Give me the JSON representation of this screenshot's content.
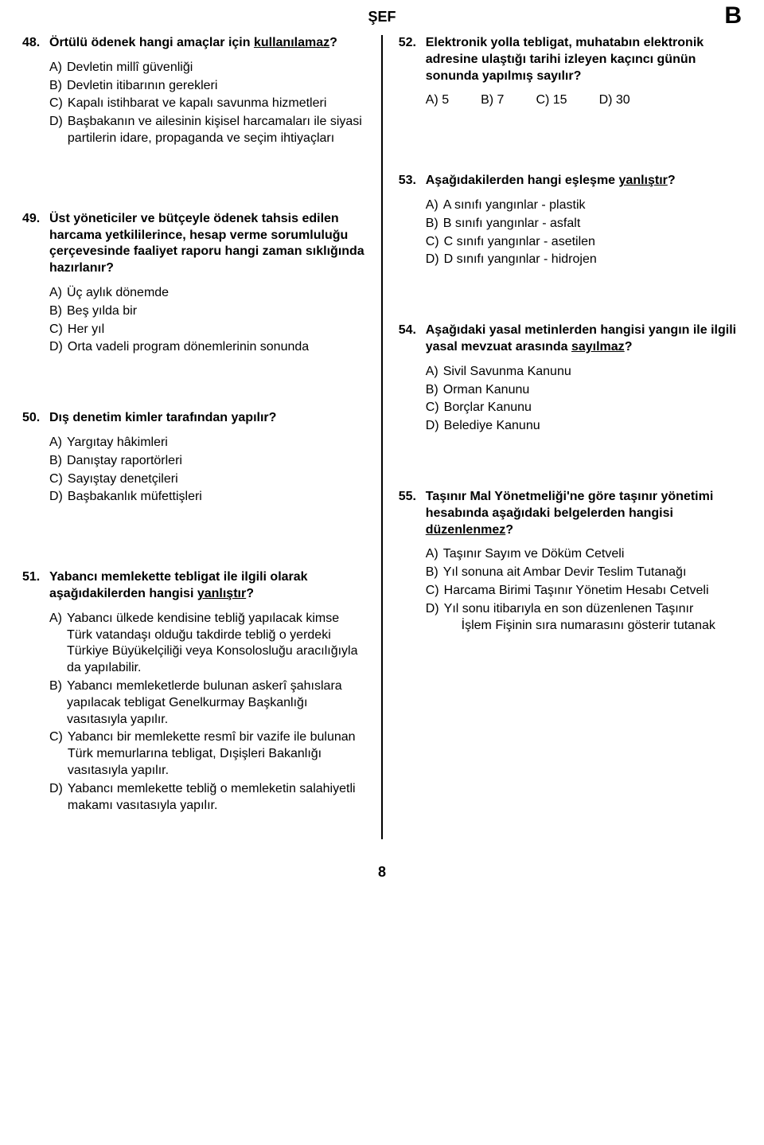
{
  "header": {
    "title": "ŞEF",
    "letter": "B"
  },
  "page_number": "8",
  "left": {
    "q48": {
      "num": "48.",
      "text_pre": "Örtülü ödenek hangi amaçlar için ",
      "text_u": "kullanılamaz",
      "text_post": "?",
      "opts": {
        "a_p": "A)",
        "a": "Devletin millî güvenliği",
        "b_p": "B)",
        "b": "Devletin itibarının gerekleri",
        "c_p": "C)",
        "c": "Kapalı istihbarat ve kapalı savunma hizmetleri",
        "d_p": "D)",
        "d": "Başbakanın ve ailesinin kişisel harcamaları ile siyasi partilerin idare, propaganda ve seçim ihtiyaçları"
      }
    },
    "q49": {
      "num": "49.",
      "text": "Üst yöneticiler ve bütçeyle ödenek tahsis edilen harcama yetkililerince, hesap verme sorumluluğu çerçevesinde faaliyet raporu hangi zaman sıklığında hazırlanır?",
      "opts": {
        "a_p": "A)",
        "a": "Üç aylık dönemde",
        "b_p": "B)",
        "b": "Beş yılda bir",
        "c_p": "C)",
        "c": "Her yıl",
        "d_p": "D)",
        "d": "Orta vadeli program dönemlerinin sonunda"
      }
    },
    "q50": {
      "num": "50.",
      "text": "Dış denetim kimler tarafından yapılır?",
      "opts": {
        "a_p": "A)",
        "a": "Yargıtay hâkimleri",
        "b_p": "B)",
        "b": "Danıştay raportörleri",
        "c_p": "C)",
        "c": "Sayıştay denetçileri",
        "d_p": "D)",
        "d": "Başbakanlık müfettişleri"
      }
    },
    "q51": {
      "num": "51.",
      "text_pre": "Yabancı memlekette tebligat ile ilgili olarak aşağıdakilerden hangisi ",
      "text_u": "yanlıştır",
      "text_post": "?",
      "opts": {
        "a_p": "A)",
        "a": "Yabancı ülkede kendisine tebliğ yapılacak kimse Türk vatandaşı olduğu takdirde tebliğ o yerdeki Türkiye Büyükelçiliği veya Konsolosluğu aracılığıyla da yapılabilir.",
        "b_p": "B)",
        "b": "Yabancı memleketlerde bulunan askerî şahıslara yapılacak tebligat Genelkurmay Başkanlığı vasıtasıyla yapılır.",
        "c_p": "C)",
        "c": "Yabancı bir memlekette resmî bir vazife ile bulunan Türk memurlarına tebligat, Dışişleri Bakanlığı vasıtasıyla yapılır.",
        "d_p": "D)",
        "d": "Yabancı memlekette tebliğ o memleketin salahiyetli makamı vasıtasıyla yapılır."
      }
    }
  },
  "right": {
    "q52": {
      "num": "52.",
      "text": "Elektronik yolla tebligat, muhatabın elektronik adresine ulaştığı tarihi izleyen kaçıncı günün sonunda yapılmış sayılır?",
      "inline": {
        "a": "A) 5",
        "b": "B) 7",
        "c": "C) 15",
        "d": "D) 30"
      }
    },
    "q53": {
      "num": "53.",
      "text_pre": "Aşağıdakilerden hangi eşleşme ",
      "text_u": "yanlıştır",
      "text_post": "?",
      "opts": {
        "a_p": "A)",
        "a": "A sınıfı yangınlar - plastik",
        "b_p": "B)",
        "b": "B sınıfı yangınlar - asfalt",
        "c_p": "C)",
        "c": "C sınıfı yangınlar - asetilen",
        "d_p": "D)",
        "d": "D sınıfı yangınlar - hidrojen"
      }
    },
    "q54": {
      "num": "54.",
      "text_pre": "Aşağıdaki yasal metinlerden hangisi yangın ile ilgili yasal mevzuat arasında ",
      "text_u": "sayılmaz",
      "text_post": "?",
      "opts": {
        "a_p": "A)",
        "a": "Sivil Savunma Kanunu",
        "b_p": "B)",
        "b": "Orman Kanunu",
        "c_p": "C)",
        "c": "Borçlar Kanunu",
        "d_p": "D)",
        "d": "Belediye Kanunu"
      }
    },
    "q55": {
      "num": "55.",
      "text_pre": "Taşınır Mal Yönetmeliği'ne göre taşınır yönetimi hesabında aşağıdaki belgelerden hangisi ",
      "text_u": "düzenlenmez",
      "text_post": "?",
      "opts": {
        "a_p": "A)",
        "a": "Taşınır Sayım ve Döküm Cetveli",
        "b_p": "B)",
        "b": "Yıl sonuna ait Ambar Devir Teslim Tutanağı",
        "c_p": "C)",
        "c": "Harcama Birimi Taşınır Yönetim Hesabı Cetveli",
        "d_p": "D)",
        "d1": "Yıl sonu itibarıyla en son düzenlenen Taşınır",
        "d2": "İşlem Fişinin sıra numarasını gösterir tutanak"
      }
    }
  }
}
